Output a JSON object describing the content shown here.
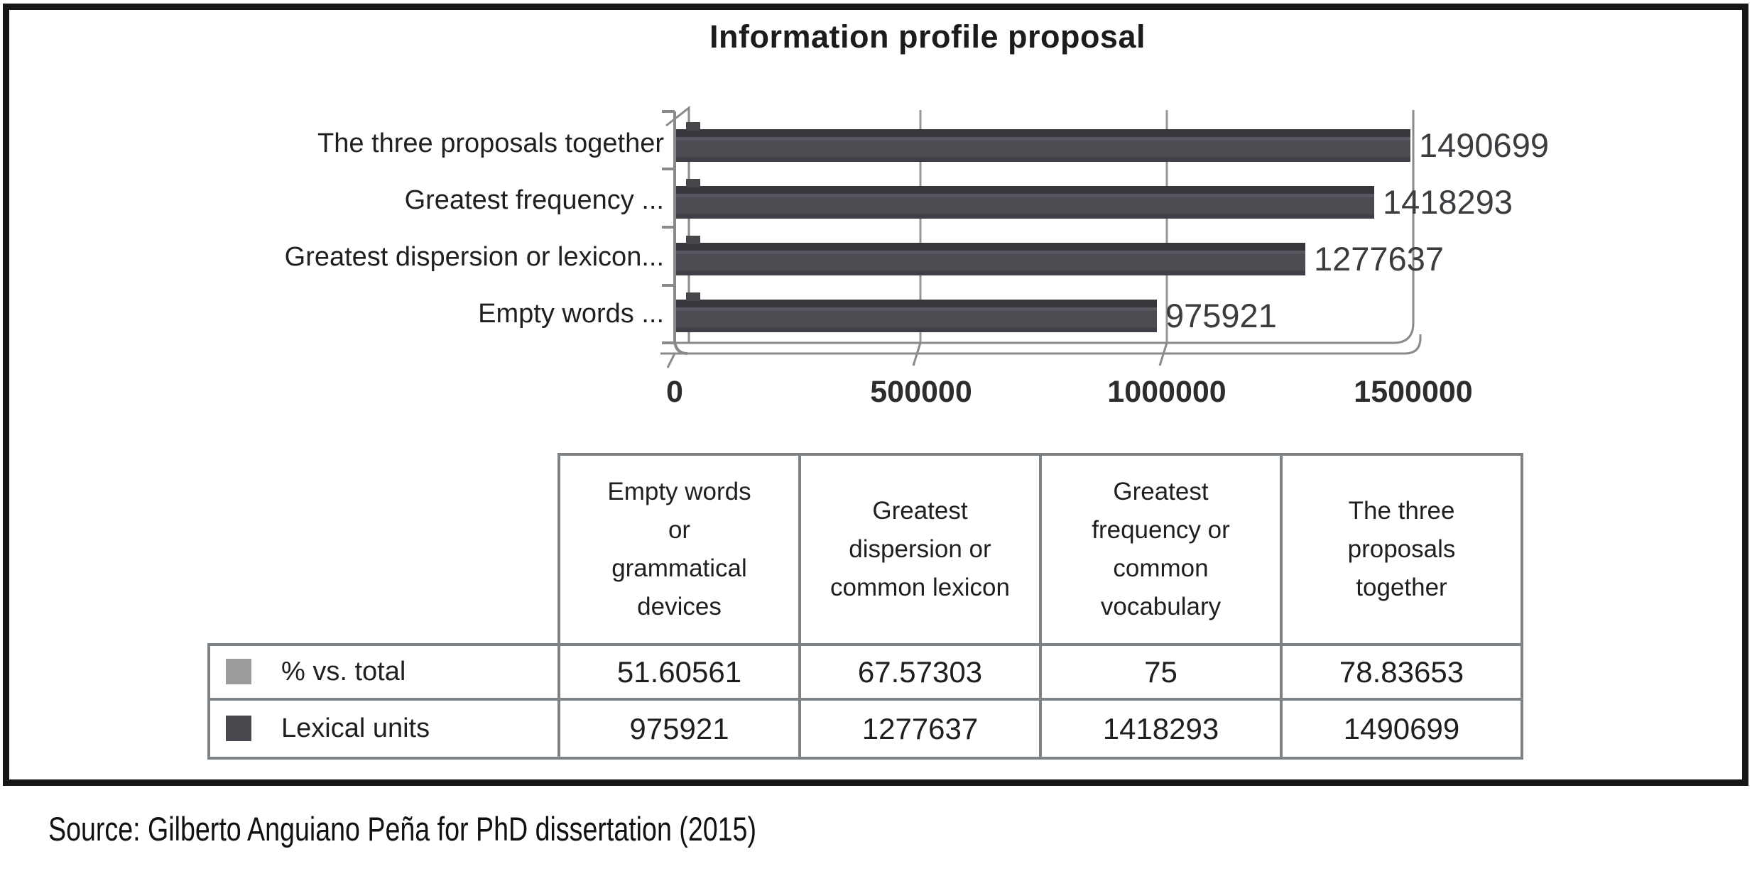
{
  "figure": {
    "caption": "Source: Gilberto Anguiano Peña for PhD dissertation (2015)"
  },
  "chart_data": {
    "type": "bar",
    "orientation": "horizontal",
    "title": "Information profile proposal",
    "categories": [
      "The three proposals together",
      "Greatest frequency ...",
      "Greatest dispersion or lexicon...",
      "Empty words ..."
    ],
    "values": [
      1490699,
      1418293,
      1277637,
      975921
    ],
    "value_labels": [
      "1490699",
      "1418293",
      "1277637",
      "975921"
    ],
    "x_tick_labels": [
      "0",
      "500000",
      "1000000",
      "1500000"
    ],
    "x_tick_values": [
      0,
      500000,
      1000000,
      1500000
    ],
    "xlim": [
      0,
      1500000
    ],
    "grid": true,
    "legend_position": "in-table-left",
    "bar_color": "#4b4b52",
    "series": [
      {
        "name": "% vs. total",
        "legend_color": "#9b9b9b",
        "values": [
          51.60561,
          67.57303,
          75,
          78.83653
        ]
      },
      {
        "name": "Lexical units",
        "legend_color": "#48484e",
        "values": [
          975921,
          1277637,
          1418293,
          1490699
        ]
      }
    ],
    "table": {
      "columns": [
        "Empty words\nor\ngrammatical\ndevices",
        "Greatest\ndispersion or\ncommon lexicon",
        "Greatest\nfrequency or\ncommon\nvocabulary",
        "The three\nproposals\ntogether"
      ],
      "rows": [
        {
          "label": "% vs. total",
          "legend_color": "#9b9b9b",
          "values": [
            "51.60561",
            "67.57303",
            "75",
            "78.83653"
          ]
        },
        {
          "label": "Lexical units",
          "legend_color": "#48484e",
          "values": [
            "975921",
            "1277637",
            "1418293",
            "1490699"
          ]
        }
      ]
    }
  }
}
